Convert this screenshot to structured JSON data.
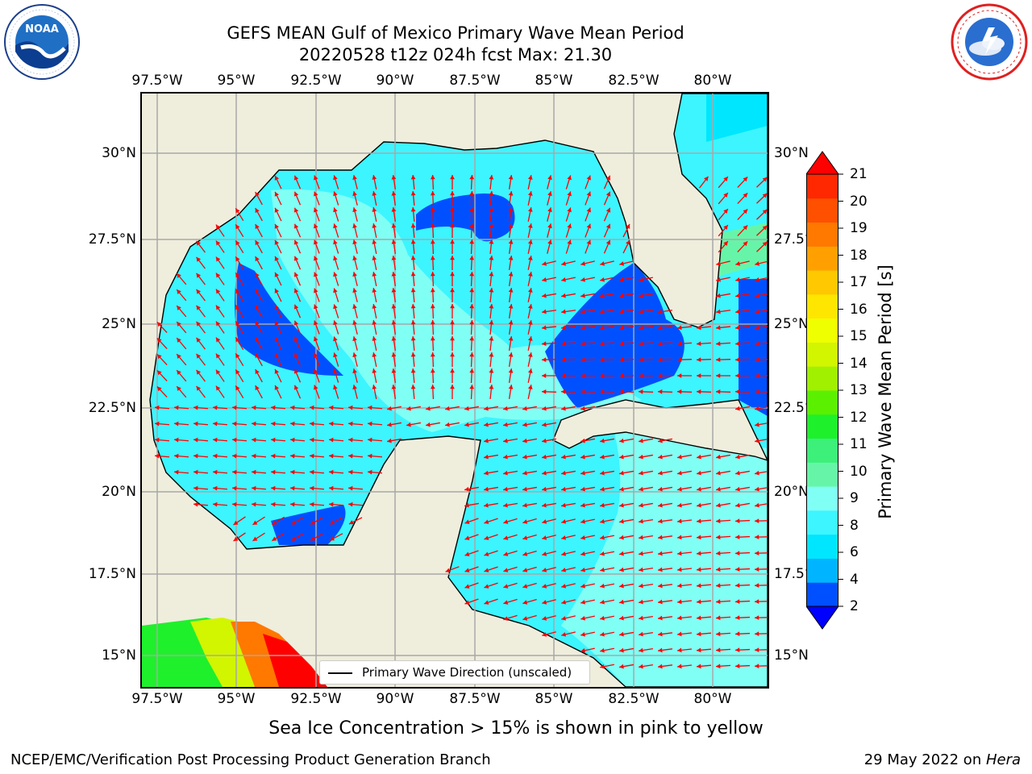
{
  "header": {
    "title_line1": "GEFS MEAN Gulf of Mexico Primary Wave Mean Period",
    "title_line2": "20220528 t12z 024h fcst   Max: 21.30"
  },
  "logos": {
    "left": {
      "name": "NOAA",
      "ring_text": "NATIONAL OCEANIC AND ATMOSPHERIC ADMINISTRATION · U.S. DEPARTMENT OF COMMERCE"
    },
    "right": {
      "name": "National Weather Service",
      "ring_text": "NATIONAL WEATHER SERVICE"
    }
  },
  "map": {
    "lon_ticks": [
      "97.5°W",
      "95°W",
      "92.5°W",
      "90°W",
      "87.5°W",
      "85°W",
      "82.5°W",
      "80°W"
    ],
    "lat_ticks_left": [
      "30°N",
      "27.5°N",
      "25°N",
      "22.5°N",
      "20°N",
      "17.5°N",
      "15°N"
    ],
    "lat_ticks_right": [
      "30°N",
      "27.5°",
      "25°N",
      "22.5°",
      "20°N",
      "17.5°",
      "15°N"
    ],
    "grid": true,
    "land_color": "#efeddc",
    "arrow_color": "#ff0000",
    "legend_label": "Primary Wave Direction (unscaled)"
  },
  "colorbar": {
    "label": "Primary Wave Mean Period [s]",
    "ticks": [
      "2",
      "4",
      "6",
      "8",
      "9",
      "10",
      "11",
      "12",
      "13",
      "14",
      "15",
      "16",
      "17",
      "18",
      "19",
      "20",
      "21"
    ],
    "colors": [
      "#0050ff",
      "#00b4ff",
      "#00e6ff",
      "#3cf5ff",
      "#80fff5",
      "#66f5a8",
      "#3cf07a",
      "#1ef02c",
      "#5af000",
      "#a0f000",
      "#d2f500",
      "#f0ff00",
      "#ffe600",
      "#ffc800",
      "#ffa000",
      "#ff7800",
      "#ff5000",
      "#ff2800"
    ],
    "under_color": "#0000ff",
    "over_color": "#ff0000"
  },
  "subtitle": "Sea Ice Concentration > 15% is shown in pink to yellow",
  "footer": {
    "left": "NCEP/EMC/Verification Post Processing Product Generation Branch",
    "right_date": "29 May 2022 on ",
    "right_host": "Hera"
  }
}
